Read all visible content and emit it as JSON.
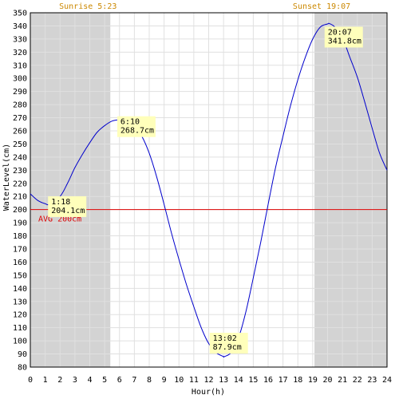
{
  "chart_data": {
    "type": "line",
    "xlabel": "Hour(h)",
    "ylabel": "WaterLevel(cm)",
    "xlim": [
      0,
      24
    ],
    "ylim": [
      80,
      350
    ],
    "x_ticks": [
      0,
      1,
      2,
      3,
      4,
      5,
      6,
      7,
      8,
      9,
      10,
      11,
      12,
      13,
      14,
      15,
      16,
      17,
      18,
      19,
      20,
      21,
      22,
      23,
      24
    ],
    "y_ticks": [
      80,
      90,
      100,
      110,
      120,
      130,
      140,
      150,
      160,
      170,
      180,
      190,
      200,
      210,
      220,
      230,
      240,
      250,
      260,
      270,
      280,
      290,
      300,
      310,
      320,
      330,
      340,
      350
    ],
    "grid": true,
    "sunrise": {
      "label": "Sunrise 5:23",
      "hour": 5.383
    },
    "sunset": {
      "label": "Sunset 19:07",
      "hour": 19.117
    },
    "average": {
      "label": "AVG 200cm",
      "value": 200
    },
    "series": [
      {
        "color": "#0000cc",
        "x": [
          0,
          0.5,
          1,
          1.3,
          2,
          2.5,
          3,
          3.5,
          4,
          4.5,
          5,
          5.5,
          6,
          6.17,
          6.5,
          7,
          7.5,
          8,
          8.5,
          9,
          9.5,
          10,
          10.5,
          11,
          11.5,
          12,
          12.5,
          13,
          13.03,
          13.5,
          14,
          14.5,
          15,
          15.5,
          16,
          16.5,
          17,
          17.5,
          18,
          18.5,
          19,
          19.5,
          20,
          20.12,
          20.5,
          21,
          21.5,
          22,
          22.5,
          23,
          23.5,
          24
        ],
        "y": [
          212,
          207,
          204.5,
          204.1,
          210,
          220,
          232,
          242,
          251,
          259,
          264,
          267.5,
          268.5,
          268.7,
          268,
          264,
          256,
          243,
          225,
          204,
          182,
          162,
          143,
          126,
          110,
          98,
          91,
          88,
          87.9,
          91,
          102,
          122,
          148,
          175,
          204,
          232,
          256,
          279,
          299,
          316,
          330,
          339,
          341.5,
          341.8,
          339,
          331,
          316,
          301,
          282,
          262,
          243,
          230
        ]
      }
    ],
    "annotations": [
      {
        "time": "1:18",
        "value": "204.1cm",
        "x": 1.3,
        "y": 204.1
      },
      {
        "time": "6:10",
        "value": "268.7cm",
        "x": 6.17,
        "y": 268.7
      },
      {
        "time": "13:02",
        "value": "87.9cm",
        "x": 13.03,
        "y": 87.9
      },
      {
        "time": "20:07",
        "value": "341.8cm",
        "x": 20.12,
        "y": 341.8
      }
    ],
    "colors": {
      "night": "#d3d3d3",
      "grid": "#e0e0e0",
      "line": "#0000cc",
      "average": "#dd0000",
      "sun_text": "#cc8800",
      "annotation_bg": "#ffffbb"
    }
  }
}
